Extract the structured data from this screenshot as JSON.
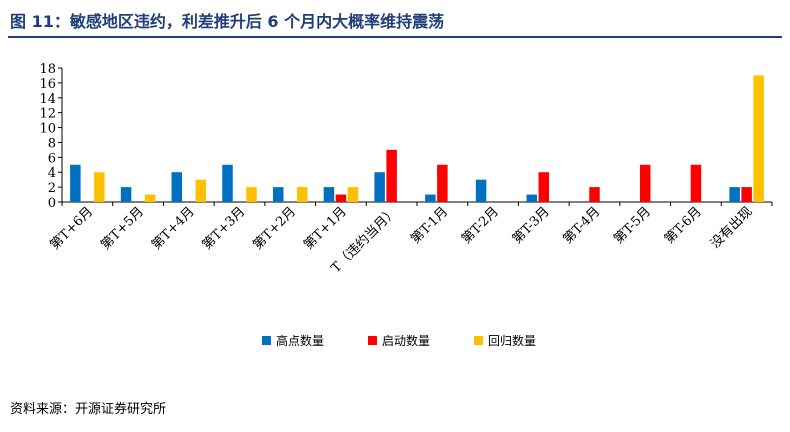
{
  "header": {
    "title": "图 11：敏感地区违约，利差推升后 6 个月内大概率维持震荡"
  },
  "footer": {
    "source": "资料来源：开源证券研究所"
  },
  "colors": {
    "series": [
      "#0070c0",
      "#ff0000",
      "#ffc000"
    ],
    "axis": "#000000"
  },
  "chart_data": {
    "type": "bar",
    "title": "图 11：敏感地区违约，利差推升后 6 个月内大概率维持震荡",
    "xlabel": "",
    "ylabel": "",
    "ylim": [
      0,
      18
    ],
    "yticks": [
      0,
      2,
      4,
      6,
      8,
      10,
      12,
      14,
      16,
      18
    ],
    "grid": false,
    "legend_position": "bottom",
    "categories": [
      "第T+6月",
      "第T+5月",
      "第T+4月",
      "第T+3月",
      "第T+2月",
      "第T+1月",
      "T（违约当月）",
      "第T-1月",
      "第T-2月",
      "第T-3月",
      "第T-4月",
      "第T-5月",
      "第T-6月",
      "没有出现"
    ],
    "series": [
      {
        "name": "高点数量",
        "values": [
          5,
          2,
          4,
          5,
          2,
          2,
          4,
          1,
          3,
          1,
          0,
          0,
          0,
          2
        ]
      },
      {
        "name": "启动数量",
        "values": [
          0,
          0,
          0,
          0,
          0,
          1,
          7,
          5,
          0,
          4,
          2,
          5,
          5,
          2
        ]
      },
      {
        "name": "回归数量",
        "values": [
          4,
          1,
          3,
          2,
          2,
          2,
          0,
          0,
          0,
          0,
          0,
          0,
          0,
          17
        ]
      }
    ]
  }
}
